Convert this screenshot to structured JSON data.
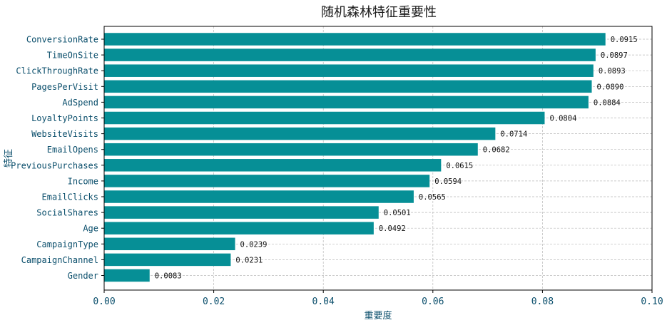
{
  "chart_data": {
    "type": "bar",
    "orientation": "horizontal",
    "title": "随机森林特征重要性",
    "xlabel": "重要度",
    "ylabel": "特征",
    "xlim": [
      0,
      0.1
    ],
    "xticks": [
      "0.00",
      "0.02",
      "0.04",
      "0.06",
      "0.08",
      "0.10"
    ],
    "grid": true,
    "bar_color": "#068f96",
    "categories": [
      "ConversionRate",
      "TimeOnSite",
      "ClickThroughRate",
      "PagesPerVisit",
      "AdSpend",
      "LoyaltyPoints",
      "WebsiteVisits",
      "EmailOpens",
      "PreviousPurchases",
      "Income",
      "EmailClicks",
      "SocialShares",
      "Age",
      "CampaignType",
      "CampaignChannel",
      "Gender"
    ],
    "values": [
      0.0915,
      0.0897,
      0.0893,
      0.089,
      0.0884,
      0.0804,
      0.0714,
      0.0682,
      0.0615,
      0.0594,
      0.0565,
      0.0501,
      0.0492,
      0.0239,
      0.0231,
      0.0083
    ],
    "value_labels": [
      "0.0915",
      "0.0897",
      "0.0893",
      "0.0890",
      "0.0884",
      "0.0804",
      "0.0714",
      "0.0682",
      "0.0615",
      "0.0594",
      "0.0565",
      "0.0501",
      "0.0492",
      "0.0239",
      "0.0231",
      "0.0083"
    ]
  }
}
